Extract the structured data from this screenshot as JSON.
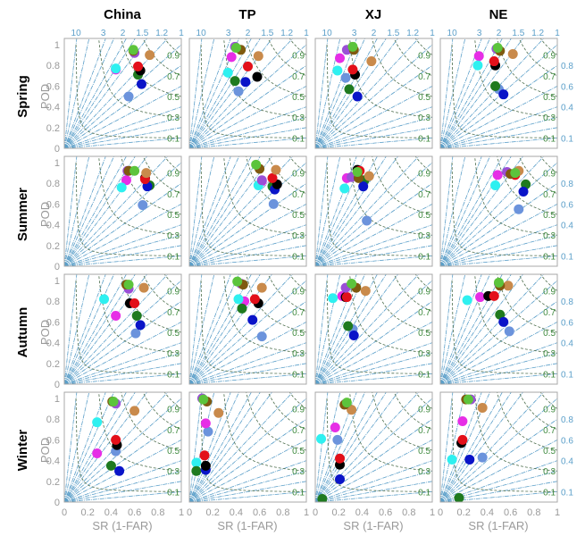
{
  "chart_data": {
    "type": "scatter",
    "subtype": "performance-diagram-grid",
    "columns": [
      "China",
      "TP",
      "XJ",
      "NE"
    ],
    "rows": [
      "Spring",
      "Summer",
      "Autumn",
      "Winter"
    ],
    "xlabel": "SR (1-FAR)",
    "ylabel": "POD",
    "xlim": [
      0,
      1
    ],
    "ylim": [
      0,
      1.06
    ],
    "x_ticks": [
      "0",
      "0.2",
      "0.4",
      "0.6",
      "0.8",
      "1"
    ],
    "y_ticks": [
      "0",
      "0.2",
      "0.4",
      "0.6",
      "0.8",
      "1"
    ],
    "bias_lines": [
      10,
      5,
      3,
      2.5,
      2,
      1.75,
      1.5,
      1.2,
      1,
      0.8,
      0.6,
      0.4,
      0.3,
      0.2,
      0.1
    ],
    "bias_labels_top": [
      "10",
      "3",
      "2",
      "1.5",
      "1.2",
      "1"
    ],
    "bias_labels_right": [
      "0.8",
      "0.6",
      "0.4",
      "0.1"
    ],
    "csi_values": [
      0.1,
      0.3,
      0.5,
      0.7,
      0.9
    ],
    "csi_labels": [
      "0.1",
      "0.3",
      "0.5",
      "0.7",
      "0.9"
    ],
    "series_colors": [
      "#9a4fd6",
      "#7f5a10",
      "#5cc43c",
      "#c98a4b",
      "#e3101a",
      "#000000",
      "#1f7a1f",
      "#0a14c8",
      "#6b93dc",
      "#e62ee6",
      "#2ef0f0"
    ],
    "point_format": "[SR, POD] per series, in series_colors order",
    "panels": [
      {
        "row": "Spring",
        "col": "China",
        "points": [
          [
            0.6,
            0.92
          ],
          [
            0.59,
            0.94
          ],
          [
            0.59,
            0.95
          ],
          [
            0.73,
            0.9
          ],
          [
            0.63,
            0.79
          ],
          [
            0.65,
            0.75
          ],
          [
            0.63,
            0.71
          ],
          [
            0.66,
            0.62
          ],
          [
            0.55,
            0.5
          ],
          [
            0.44,
            0.76
          ],
          [
            0.44,
            0.77
          ]
        ]
      },
      {
        "row": "Spring",
        "col": "TP",
        "points": [
          [
            0.39,
            0.98
          ],
          [
            0.44,
            0.95
          ],
          [
            0.4,
            0.97
          ],
          [
            0.59,
            0.89
          ],
          [
            0.5,
            0.79
          ],
          [
            0.58,
            0.69
          ],
          [
            0.39,
            0.65
          ],
          [
            0.48,
            0.64
          ],
          [
            0.42,
            0.55
          ],
          [
            0.36,
            0.88
          ],
          [
            0.33,
            0.73
          ]
        ]
      },
      {
        "row": "Spring",
        "col": "XJ",
        "points": [
          [
            0.27,
            0.95
          ],
          [
            0.33,
            0.95
          ],
          [
            0.32,
            0.98
          ],
          [
            0.48,
            0.84
          ],
          [
            0.32,
            0.76
          ],
          [
            0.34,
            0.71
          ],
          [
            0.29,
            0.57
          ],
          [
            0.36,
            0.5
          ],
          [
            0.26,
            0.68
          ],
          [
            0.21,
            0.87
          ],
          [
            0.19,
            0.75
          ]
        ]
      },
      {
        "row": "Spring",
        "col": "NE",
        "points": [
          [
            0.48,
            0.96
          ],
          [
            0.51,
            0.94
          ],
          [
            0.49,
            0.97
          ],
          [
            0.62,
            0.91
          ],
          [
            0.46,
            0.84
          ],
          [
            0.47,
            0.8
          ],
          [
            0.47,
            0.6
          ],
          [
            0.54,
            0.52
          ],
          [
            0.5,
            0.57
          ],
          [
            0.33,
            0.89
          ],
          [
            0.32,
            0.8
          ]
        ]
      },
      {
        "row": "Summer",
        "col": "China",
        "points": [
          [
            0.54,
            0.92
          ],
          [
            0.55,
            0.92
          ],
          [
            0.6,
            0.92
          ],
          [
            0.7,
            0.9
          ],
          [
            0.69,
            0.84
          ],
          [
            0.69,
            0.85
          ],
          [
            0.73,
            0.78
          ],
          [
            0.71,
            0.77
          ],
          [
            0.67,
            0.59
          ],
          [
            0.53,
            0.83
          ],
          [
            0.49,
            0.76
          ]
        ]
      },
      {
        "row": "Summer",
        "col": "TP",
        "points": [
          [
            0.62,
            0.83
          ],
          [
            0.6,
            0.94
          ],
          [
            0.57,
            0.98
          ],
          [
            0.74,
            0.93
          ],
          [
            0.71,
            0.85
          ],
          [
            0.75,
            0.79
          ],
          [
            0.71,
            0.77
          ],
          [
            0.73,
            0.74
          ],
          [
            0.72,
            0.6
          ],
          [
            0.62,
            0.82
          ],
          [
            0.59,
            0.78
          ]
        ]
      },
      {
        "row": "Summer",
        "col": "XJ",
        "points": [
          [
            0.31,
            0.86
          ],
          [
            0.37,
            0.85
          ],
          [
            0.36,
            0.91
          ],
          [
            0.46,
            0.87
          ],
          [
            0.38,
            0.92
          ],
          [
            0.36,
            0.93
          ],
          [
            0.42,
            0.83
          ],
          [
            0.41,
            0.77
          ],
          [
            0.44,
            0.44
          ],
          [
            0.27,
            0.85
          ],
          [
            0.25,
            0.75
          ]
        ]
      },
      {
        "row": "Summer",
        "col": "NE",
        "points": [
          [
            0.57,
            0.91
          ],
          [
            0.6,
            0.89
          ],
          [
            0.64,
            0.9
          ],
          [
            0.67,
            0.92
          ],
          [
            0.64,
            0.88
          ],
          [
            0.63,
            0.89
          ],
          [
            0.73,
            0.79
          ],
          [
            0.71,
            0.72
          ],
          [
            0.67,
            0.55
          ],
          [
            0.49,
            0.88
          ],
          [
            0.47,
            0.78
          ]
        ]
      },
      {
        "row": "Autumn",
        "col": "China",
        "points": [
          [
            0.55,
            0.92
          ],
          [
            0.53,
            0.96
          ],
          [
            0.55,
            0.96
          ],
          [
            0.68,
            0.93
          ],
          [
            0.6,
            0.78
          ],
          [
            0.56,
            0.78
          ],
          [
            0.62,
            0.66
          ],
          [
            0.65,
            0.57
          ],
          [
            0.61,
            0.49
          ],
          [
            0.44,
            0.66
          ],
          [
            0.34,
            0.82
          ]
        ]
      },
      {
        "row": "Autumn",
        "col": "TP",
        "points": [
          [
            0.44,
            0.97
          ],
          [
            0.46,
            0.96
          ],
          [
            0.41,
            0.99
          ],
          [
            0.62,
            0.93
          ],
          [
            0.56,
            0.82
          ],
          [
            0.59,
            0.78
          ],
          [
            0.45,
            0.73
          ],
          [
            0.54,
            0.62
          ],
          [
            0.62,
            0.46
          ],
          [
            0.47,
            0.8
          ],
          [
            0.42,
            0.82
          ]
        ]
      },
      {
        "row": "Autumn",
        "col": "XJ",
        "points": [
          [
            0.26,
            0.93
          ],
          [
            0.35,
            0.93
          ],
          [
            0.31,
            0.97
          ],
          [
            0.43,
            0.9
          ],
          [
            0.27,
            0.84
          ],
          [
            0.26,
            0.84
          ],
          [
            0.28,
            0.56
          ],
          [
            0.33,
            0.47
          ],
          [
            0.32,
            0.53
          ],
          [
            0.23,
            0.85
          ],
          [
            0.15,
            0.83
          ]
        ]
      },
      {
        "row": "Autumn",
        "col": "NE",
        "points": [
          [
            0.5,
            0.97
          ],
          [
            0.51,
            0.95
          ],
          [
            0.5,
            0.98
          ],
          [
            0.58,
            0.95
          ],
          [
            0.46,
            0.85
          ],
          [
            0.41,
            0.85
          ],
          [
            0.51,
            0.67
          ],
          [
            0.54,
            0.6
          ],
          [
            0.59,
            0.51
          ],
          [
            0.34,
            0.84
          ],
          [
            0.23,
            0.81
          ]
        ]
      },
      {
        "row": "Winter",
        "col": "China",
        "points": [
          [
            0.44,
            0.95
          ],
          [
            0.41,
            0.97
          ],
          [
            0.42,
            0.97
          ],
          [
            0.6,
            0.88
          ],
          [
            0.44,
            0.6
          ],
          [
            0.45,
            0.55
          ],
          [
            0.4,
            0.35
          ],
          [
            0.47,
            0.3
          ],
          [
            0.44,
            0.49
          ],
          [
            0.28,
            0.47
          ],
          [
            0.28,
            0.77
          ]
        ]
      },
      {
        "row": "Winter",
        "col": "TP",
        "points": [
          [
            0.11,
            1.0
          ],
          [
            0.15,
            0.97
          ],
          [
            0.12,
            0.99
          ],
          [
            0.25,
            0.86
          ],
          [
            0.13,
            0.45
          ],
          [
            0.14,
            0.35
          ],
          [
            0.06,
            0.3
          ],
          [
            0.14,
            0.31
          ],
          [
            0.16,
            0.68
          ],
          [
            0.14,
            0.76
          ],
          [
            0.06,
            0.38
          ]
        ]
      },
      {
        "row": "Winter",
        "col": "XJ",
        "points": [
          [
            0.26,
            0.95
          ],
          [
            0.25,
            0.94
          ],
          [
            0.27,
            0.96
          ],
          [
            0.31,
            0.89
          ],
          [
            0.21,
            0.42
          ],
          [
            0.21,
            0.36
          ],
          [
            0.06,
            0.03
          ],
          [
            0.21,
            0.22
          ],
          [
            0.19,
            0.6
          ],
          [
            0.17,
            0.72
          ],
          [
            0.05,
            0.61
          ]
        ]
      },
      {
        "row": "Winter",
        "col": "NE",
        "points": [
          [
            0.26,
            0.99
          ],
          [
            0.22,
            0.99
          ],
          [
            0.24,
            0.99
          ],
          [
            0.36,
            0.91
          ],
          [
            0.19,
            0.6
          ],
          [
            0.18,
            0.57
          ],
          [
            0.16,
            0.04
          ],
          [
            0.25,
            0.41
          ],
          [
            0.36,
            0.43
          ],
          [
            0.19,
            0.78
          ],
          [
            0.1,
            0.41
          ]
        ]
      }
    ]
  }
}
